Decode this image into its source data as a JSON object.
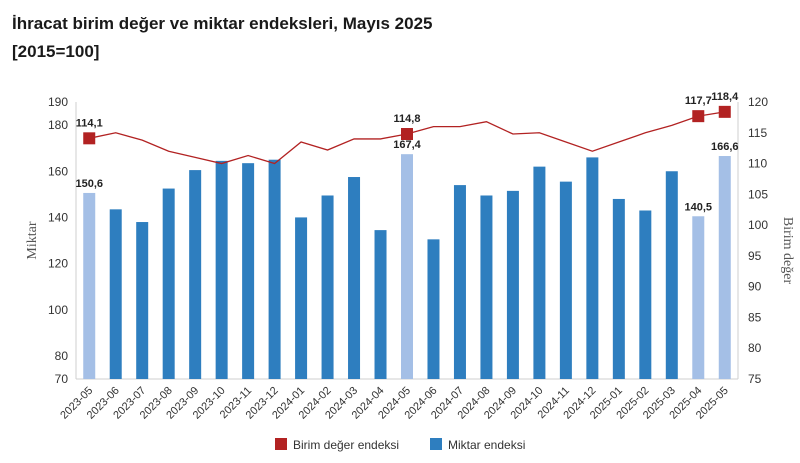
{
  "title": "İhracat birim değer ve miktar endeksleri, Mayıs 2025",
  "subtitle": "[2015=100]",
  "chart_data": {
    "type": "bar",
    "title": "İhracat birim değer ve miktar endeksleri, Mayıs 2025",
    "subtitle": "[2015=100]",
    "categories": [
      "2023-05",
      "2023-06",
      "2023-07",
      "2023-08",
      "2023-09",
      "2023-10",
      "2023-11",
      "2023-12",
      "2024-01",
      "2024-02",
      "2024-03",
      "2024-04",
      "2024-05",
      "2024-06",
      "2024-07",
      "2024-08",
      "2024-09",
      "2024-10",
      "2024-11",
      "2024-12",
      "2025-01",
      "2025-02",
      "2025-03",
      "2025-04",
      "2025-05"
    ],
    "ylabel": "Miktar",
    "y2label": "Birim değer",
    "ylim": [
      70,
      190
    ],
    "y2lim": [
      75,
      120
    ],
    "yticks": [
      "70",
      "80",
      "100",
      "120",
      "140",
      "160",
      "180",
      "190"
    ],
    "y2ticks": [
      "75",
      "80",
      "85",
      "90",
      "95",
      "100",
      "105",
      "110",
      "115",
      "120"
    ],
    "legend": {
      "position": "bottom"
    },
    "grid": false,
    "series": [
      {
        "name": "Miktar endeksi",
        "type": "bar",
        "axis": "left",
        "color": "#2e7ebf",
        "highlight_color": "#a4bfe6",
        "highlighted_indices": [
          0,
          12,
          23,
          24
        ],
        "values": [
          150.6,
          143.5,
          138.0,
          152.5,
          160.5,
          164.5,
          163.5,
          165.0,
          140.0,
          149.5,
          157.5,
          134.5,
          167.4,
          130.5,
          154.0,
          149.5,
          151.5,
          162.0,
          155.5,
          166.0,
          148.0,
          143.0,
          160.0,
          140.5,
          166.6
        ],
        "labels": {
          "0": "150,6",
          "12": "167,4",
          "23": "140,5",
          "24": "166,6"
        }
      },
      {
        "name": "Birim değer endeksi",
        "type": "line",
        "axis": "right",
        "color": "#b22222",
        "marker_indices": [
          0,
          12,
          23,
          24
        ],
        "values": [
          114.1,
          115.0,
          113.8,
          112.0,
          111.0,
          110.0,
          111.3,
          110.0,
          113.5,
          112.2,
          114.0,
          114.0,
          114.8,
          116.0,
          116.0,
          116.8,
          114.8,
          115.0,
          113.5,
          112.0,
          113.5,
          115.0,
          116.2,
          117.7,
          118.4
        ],
        "labels": {
          "0": "114,1",
          "12": "114,8",
          "23": "117,7",
          "24": "118,4"
        }
      }
    ]
  }
}
